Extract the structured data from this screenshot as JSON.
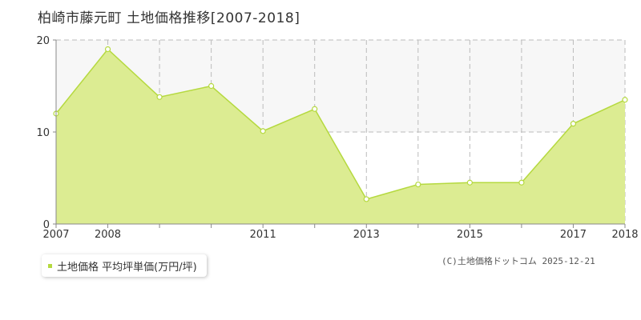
{
  "header": {
    "title": "柏崎市藤元町 土地価格推移[2007-2018]"
  },
  "legend": {
    "label": "土地価格 平均坪単価(万円/坪)"
  },
  "footer": {
    "copyright": "(C)土地価格ドットコム 2025-12-21"
  },
  "colors": {
    "area_fill": "#dcec92",
    "line": "#b5d93f",
    "point_fill": "#ffffff",
    "grid": "#bbbbbb",
    "axis": "#888888",
    "bg_band": "#f7f7f7"
  },
  "chart_data": {
    "type": "area",
    "title": "柏崎市藤元町 土地価格推移[2007-2018]",
    "x": [
      2007,
      2008,
      2009,
      2010,
      2011,
      2012,
      2013,
      2014,
      2015,
      2016,
      2017,
      2018
    ],
    "series": [
      {
        "name": "土地価格 平均坪単価(万円/坪)",
        "values": [
          12.0,
          19.0,
          13.8,
          15.0,
          10.1,
          12.5,
          2.7,
          4.3,
          4.5,
          4.5,
          10.9,
          13.5
        ]
      }
    ],
    "x_tick_labels": [
      "2007",
      "2008",
      "2011",
      "2013",
      "2015",
      "2017",
      "2018"
    ],
    "y_ticks": [
      0,
      10,
      20
    ],
    "ylim": [
      0,
      20
    ],
    "xlim": [
      2007,
      2018
    ],
    "grid": true,
    "legend_position": "bottom-left"
  }
}
